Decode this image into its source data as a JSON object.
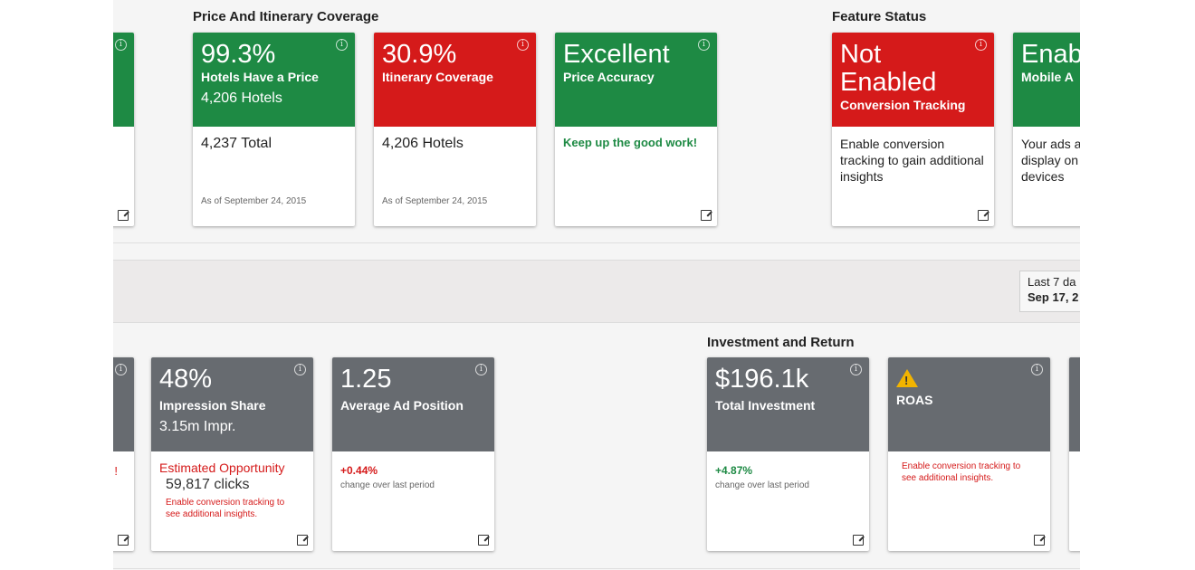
{
  "sections": {
    "price_itinerary": "Price And Itinerary Coverage",
    "feature_status": "Feature Status",
    "investment_return": "Investment and Return"
  },
  "cards": {
    "hotels_price": {
      "big": "99.3%",
      "label": "Hotels Have a Price",
      "sub": "4,206 Hotels",
      "total": "4,237 Total",
      "asof": "As of September 24, 2015"
    },
    "itinerary": {
      "big": "30.9%",
      "label": "Itinerary Coverage",
      "total": "4,206 Hotels",
      "asof": "As of September 24, 2015"
    },
    "price_accuracy": {
      "big": "Excellent",
      "label": "Price Accuracy",
      "note": "Keep up the good work!"
    },
    "conversion": {
      "big1": "Not",
      "big2": "Enabled",
      "label": "Conversion Tracking",
      "desc": "Enable conversion tracking to gain additional insights"
    },
    "mobile": {
      "big": "Enab",
      "label": "Mobile A",
      "desc": "Your ads a display on devices"
    },
    "impression": {
      "big": "48%",
      "label": "Impression Share",
      "sub": "3.15m Impr.",
      "est_title": "Estimated Opportunity",
      "est_val": "59,817 clicks",
      "est_note": "Enable conversion tracking to see additional insights."
    },
    "avg_position": {
      "big": "1.25",
      "label": "Average Ad Position",
      "change": "+0.44%",
      "change_note": "change over last period"
    },
    "investment": {
      "big": "$196.1k",
      "label": "Total Investment",
      "change": "+4.87%",
      "change_note": "change over last period"
    },
    "roas": {
      "label": "ROAS",
      "note": "Enable conversion tracking to see additional insights.",
      "warn": "!"
    }
  },
  "date_range": {
    "line1": "Last 7 da",
    "line2": "Sep 17, 2"
  },
  "info_glyph": "i",
  "partial_left_red_mark": "!",
  "colors": {
    "green": "#1e8a44",
    "red": "#d51a1a",
    "gray": "#676b70",
    "warning": "#f2b400"
  }
}
